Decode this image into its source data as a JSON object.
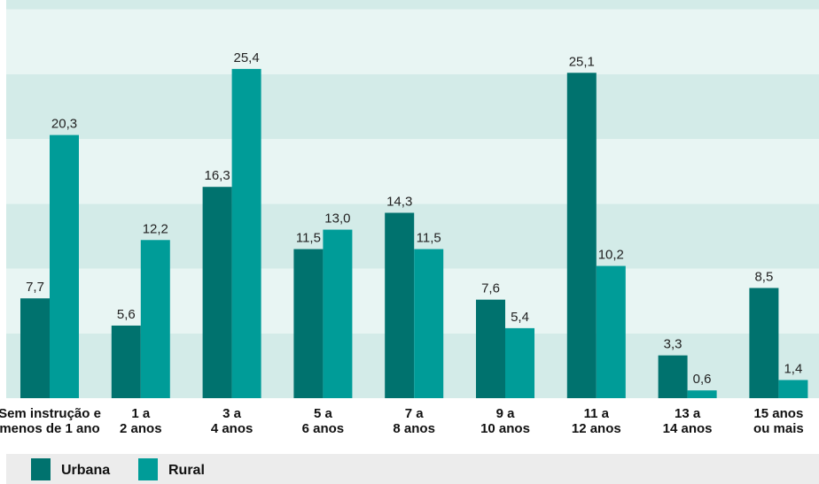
{
  "chart_data": {
    "type": "bar",
    "categories": [
      [
        "Sem instrução e",
        "menos de 1 ano"
      ],
      [
        "1 a",
        "2 anos"
      ],
      [
        "3 a",
        "4 anos"
      ],
      [
        "5 a",
        "6 anos"
      ],
      [
        "7 a",
        "8 anos"
      ],
      [
        "9 a",
        "10 anos"
      ],
      [
        "11 a",
        "12 anos"
      ],
      [
        "13 a",
        "14 anos"
      ],
      [
        "15 anos",
        "ou mais"
      ]
    ],
    "series": [
      {
        "name": "Urbana",
        "color": "#00726e",
        "values": [
          7.7,
          5.6,
          16.3,
          11.5,
          14.3,
          7.6,
          25.1,
          3.3,
          8.5
        ],
        "labels": [
          "7,7",
          "5,6",
          "16,3",
          "11,5",
          "14,3",
          "7,6",
          "25,1",
          "3,3",
          "8,5"
        ]
      },
      {
        "name": "Rural",
        "color": "#009c98",
        "values": [
          20.3,
          12.2,
          25.4,
          13.0,
          11.5,
          5.4,
          10.2,
          0.6,
          1.4
        ],
        "labels": [
          "20,3",
          "12,2",
          "25,4",
          "13,0",
          "11,5",
          "5,4",
          "10,2",
          "0,6",
          "1,4"
        ]
      }
    ],
    "ylim": [
      0,
      30
    ],
    "grid": true,
    "legend": "bottom-left",
    "band_colors": [
      "#d3ebe8",
      "#e8f5f3"
    ]
  }
}
